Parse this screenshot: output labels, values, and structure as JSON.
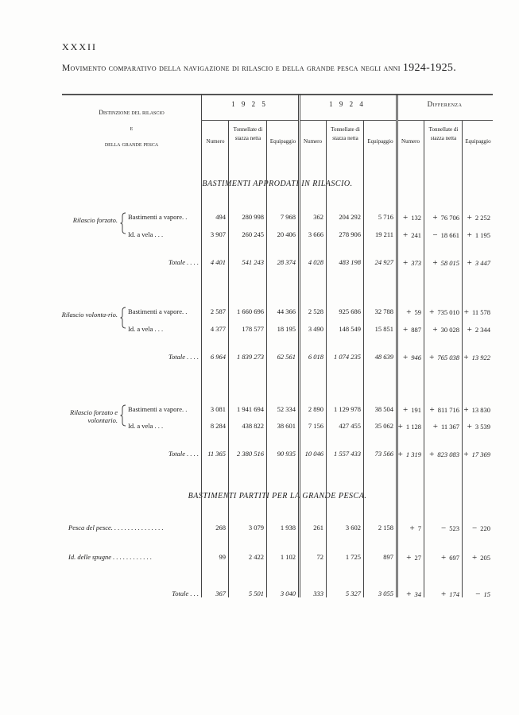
{
  "page_number": "XXXII",
  "title": {
    "text": "Movimento comparativo della navigazione di rilascio e della grande pesca negli anni ",
    "years": "1924-1925."
  },
  "header": {
    "distinction": [
      "Distinzione del rilascio",
      "e",
      "della grande pesca"
    ],
    "groups": [
      "1 9 2 5",
      "1 9 2 4",
      "Differenza"
    ],
    "columns": [
      "Numero",
      "Tonnellate di stazza netta",
      "Equipaggio"
    ]
  },
  "sections": [
    {
      "title": "BASTIMENTI APPRODATI IN RILASCIO."
    },
    {
      "title": "BASTIMENTI PARTITI PER LA GRANDE PESCA."
    }
  ],
  "groups": [
    {
      "label": "Rilascio forzato.",
      "rows": [
        {
          "label": "Bastimenti a vapore. .",
          "values": [
            "494",
            "280 998",
            "7 968",
            "362",
            "204 292",
            "5 716",
            "+132",
            "+76 706",
            "+2 252"
          ]
        },
        {
          "label": "Id.      a vela . . .",
          "values": [
            "3 907",
            "260 245",
            "20 406",
            "3 666",
            "278 906",
            "19 211",
            "+241",
            "−18 661",
            "+1 195"
          ]
        },
        {
          "label": "Totale . . . .",
          "total": true,
          "values": [
            "4 401",
            "541 243",
            "28 374",
            "4 028",
            "483 198",
            "24 927",
            "+373",
            "+58 015",
            "+3 447"
          ]
        }
      ]
    },
    {
      "label": "Rilascio volonta-rio.",
      "rows": [
        {
          "label": "Bastimenti a vapore. .",
          "values": [
            "2 587",
            "1 660 696",
            "44 366",
            "2 528",
            "925 686",
            "32 788",
            "+59",
            "+735 010",
            "+11 578"
          ]
        },
        {
          "label": "Id.      a vela . . .",
          "values": [
            "4 377",
            "178 577",
            "18 195",
            "3 490",
            "148 549",
            "15 851",
            "+887",
            "+30 028",
            "+2 344"
          ]
        },
        {
          "label": "Totale . . . .",
          "total": true,
          "values": [
            "6 964",
            "1 839 273",
            "62 561",
            "6 018",
            "1 074 235",
            "48 639",
            "+946",
            "+765 038",
            "+13 922"
          ]
        }
      ]
    },
    {
      "label": "Rilascio forzato e volontario.",
      "rows": [
        {
          "label": "Bastimenti a vapore. .",
          "values": [
            "3 081",
            "1 941 694",
            "52 334",
            "2 890",
            "1 129 978",
            "38 504",
            "+191",
            "+811 716",
            "+13 830"
          ]
        },
        {
          "label": "Id.      a vela . . .",
          "values": [
            "8 284",
            "438 822",
            "38 601",
            "7 156",
            "427 455",
            "35 062",
            "+1 128",
            "+11 367",
            "+3 539"
          ]
        },
        {
          "label": "Totale . . . .",
          "total": true,
          "values": [
            "11 365",
            "2 380 516",
            "90 935",
            "10 046",
            "1 557 433",
            "73 566",
            "+1 319",
            "+823 083",
            "+17 369"
          ]
        }
      ]
    },
    {
      "label": "",
      "rows": [
        {
          "label": "Pesca del pesce. . . . . . . . . . . . . . . .",
          "italic": true,
          "values": [
            "268",
            "3 079",
            "1 938",
            "261",
            "3 602",
            "2 158",
            "+7",
            "−523",
            "−220"
          ]
        },
        {
          "label": "Id. delle spugne . . . . . . . . . . . .",
          "italic": true,
          "values": [
            "99",
            "2 422",
            "1 102",
            "72",
            "1 725",
            "897",
            "+27",
            "+697",
            "+205"
          ]
        },
        {
          "label": "Totale . . .",
          "total": true,
          "values": [
            "367",
            "5 501",
            "3 040",
            "333",
            "5 327",
            "3 055",
            "+34",
            "+174",
            "−15"
          ]
        }
      ]
    }
  ]
}
